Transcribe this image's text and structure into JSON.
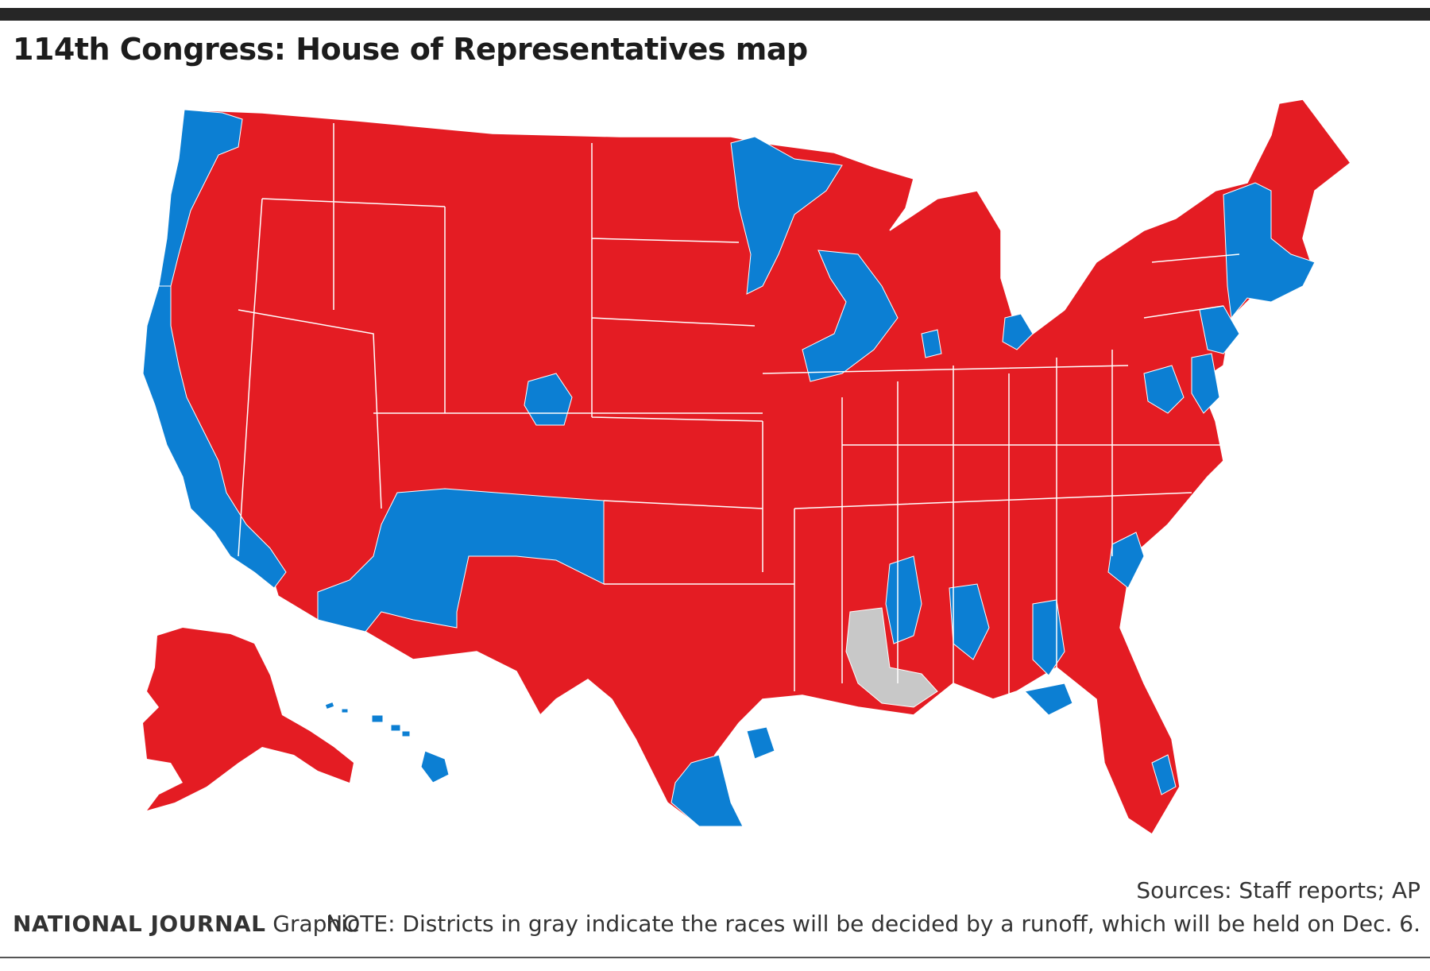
{
  "title": "114th Congress: House of Representatives map",
  "colors": {
    "republican": "#e41c23",
    "democrat": "#0c7fd3",
    "runoff": "#c8c8c8",
    "border": "#ffffff",
    "rule": "#262626"
  },
  "footer": {
    "sources": "Sources: Staff reports; AP",
    "note": "NOTE: Districts in gray indicate the races will be decided by a runoff, which will be held on Dec. 6.",
    "brand_strong": "NATIONAL JOURNAL",
    "brand_rest": " Graphic"
  }
}
